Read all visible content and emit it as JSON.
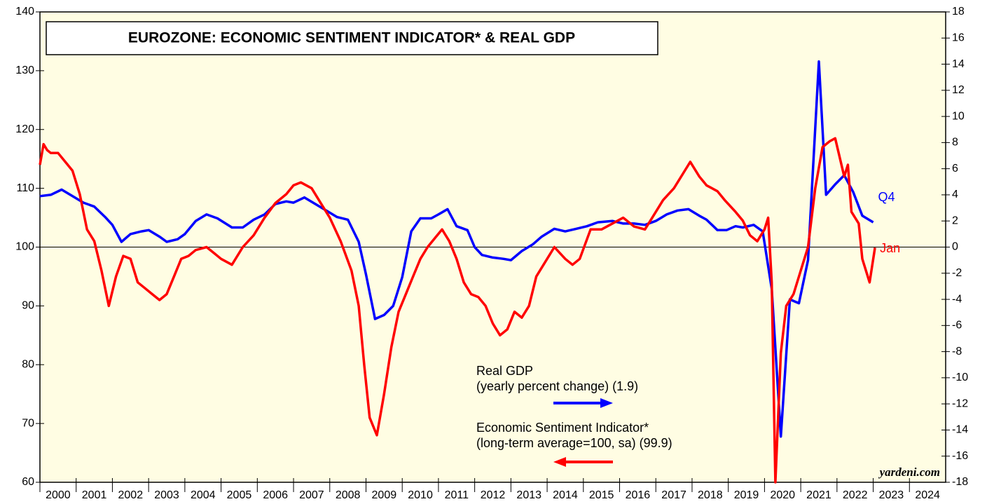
{
  "chart_data": {
    "type": "line",
    "title": "EUROZONE: ECONOMIC SENTIMENT INDICATOR* & REAL GDP",
    "source": "yardeni.com",
    "xlim": [
      2000,
      2025
    ],
    "xticks": [
      2000,
      2001,
      2002,
      2003,
      2004,
      2005,
      2006,
      2007,
      2008,
      2009,
      2010,
      2011,
      2012,
      2013,
      2014,
      2015,
      2016,
      2017,
      2018,
      2019,
      2020,
      2021,
      2022,
      2023,
      2024
    ],
    "ylim": [
      60,
      140
    ],
    "yticks": [
      60,
      70,
      80,
      90,
      100,
      110,
      120,
      130,
      140
    ],
    "y2lim": [
      -18,
      18
    ],
    "y2ticks": [
      -18,
      -16,
      -14,
      -12,
      -10,
      -8,
      -6,
      -4,
      -2,
      0,
      2,
      4,
      6,
      8,
      10,
      12,
      14,
      16,
      18
    ],
    "hline": 100,
    "background": "#fffde3",
    "series": [
      {
        "name": "Real GDP",
        "label": "(yearly percent change) (1.9)",
        "end_label": "Q4",
        "color": "#0000ff",
        "axis": "y2",
        "x": [
          2000.0,
          2000.3,
          2000.6,
          2000.9,
          2001.2,
          2001.5,
          2001.8,
          2002.0,
          2002.25,
          2002.5,
          2002.8,
          2003.0,
          2003.3,
          2003.5,
          2003.8,
          2004.0,
          2004.3,
          2004.6,
          2004.9,
          2005.3,
          2005.6,
          2005.9,
          2006.2,
          2006.5,
          2006.8,
          2007.0,
          2007.3,
          2007.6,
          2007.9,
          2008.2,
          2008.5,
          2008.8,
          2009.0,
          2009.25,
          2009.5,
          2009.75,
          2010.0,
          2010.25,
          2010.5,
          2010.8,
          2011.0,
          2011.25,
          2011.5,
          2011.8,
          2012.0,
          2012.2,
          2012.5,
          2012.8,
          2013.0,
          2013.3,
          2013.6,
          2013.85,
          2014.2,
          2014.5,
          2014.8,
          2015.1,
          2015.4,
          2015.8,
          2016.1,
          2016.4,
          2016.7,
          2017.0,
          2017.3,
          2017.6,
          2017.9,
          2018.2,
          2018.4,
          2018.7,
          2018.95,
          2019.2,
          2019.4,
          2019.7,
          2019.95,
          2020.2,
          2020.45,
          2020.7,
          2020.95,
          2021.2,
          2021.5,
          2021.7,
          2021.95,
          2022.2,
          2022.45,
          2022.7,
          2023.0
        ],
        "values": [
          3.9,
          4.0,
          4.4,
          3.9,
          3.4,
          3.1,
          2.3,
          1.7,
          0.4,
          1.0,
          1.2,
          1.3,
          0.8,
          0.4,
          0.6,
          1.0,
          2.0,
          2.5,
          2.2,
          1.5,
          1.5,
          2.1,
          2.5,
          3.3,
          3.5,
          3.4,
          3.8,
          3.3,
          2.8,
          2.3,
          2.1,
          0.4,
          -2.1,
          -5.5,
          -5.2,
          -4.5,
          -2.3,
          1.2,
          2.2,
          2.2,
          2.5,
          2.9,
          1.6,
          1.3,
          0.0,
          -0.6,
          -0.8,
          -0.9,
          -1.0,
          -0.3,
          0.2,
          0.8,
          1.4,
          1.2,
          1.4,
          1.6,
          1.9,
          2.0,
          1.8,
          1.8,
          1.7,
          2.0,
          2.5,
          2.8,
          2.9,
          2.4,
          2.1,
          1.3,
          1.3,
          1.6,
          1.5,
          1.7,
          1.2,
          -3.2,
          -14.5,
          -4.0,
          -4.3,
          -1.0,
          14.2,
          4.0,
          4.8,
          5.5,
          4.2,
          2.4,
          1.9
        ]
      },
      {
        "name": "Economic Sentiment Indicator*",
        "label": "(long-term average=100, sa) (99.9)",
        "end_label": "Jan",
        "color": "#ff0000",
        "x": [
          2000.0,
          2000.1,
          2000.2,
          2000.3,
          2000.5,
          2000.7,
          2000.9,
          2001.1,
          2001.3,
          2001.5,
          2001.7,
          2001.9,
          2002.1,
          2002.3,
          2002.5,
          2002.7,
          2002.9,
          2003.1,
          2003.3,
          2003.5,
          2003.7,
          2003.9,
          2004.1,
          2004.3,
          2004.6,
          2004.8,
          2005.0,
          2005.3,
          2005.6,
          2005.9,
          2006.2,
          2006.5,
          2006.8,
          2007.0,
          2007.2,
          2007.5,
          2007.8,
          2008.0,
          2008.3,
          2008.6,
          2008.8,
          2008.95,
          2009.1,
          2009.3,
          2009.5,
          2009.7,
          2009.9,
          2010.1,
          2010.3,
          2010.5,
          2010.7,
          2010.9,
          2011.1,
          2011.3,
          2011.5,
          2011.7,
          2011.9,
          2012.1,
          2012.3,
          2012.5,
          2012.7,
          2012.9,
          2013.1,
          2013.3,
          2013.5,
          2013.7,
          2013.9,
          2014.2,
          2014.5,
          2014.7,
          2014.9,
          2015.2,
          2015.5,
          2015.8,
          2016.1,
          2016.4,
          2016.7,
          2016.9,
          2017.2,
          2017.5,
          2017.8,
          2017.95,
          2018.2,
          2018.4,
          2018.7,
          2018.9,
          2019.2,
          2019.4,
          2019.6,
          2019.8,
          2020.0,
          2020.1,
          2020.2,
          2020.3,
          2020.45,
          2020.6,
          2020.8,
          2021.0,
          2021.2,
          2021.4,
          2021.6,
          2021.8,
          2021.95,
          2022.2,
          2022.3,
          2022.4,
          2022.6,
          2022.7,
          2022.9,
          2023.05
        ],
        "values": [
          114,
          117.5,
          116.5,
          116,
          116,
          114.5,
          113,
          109,
          103,
          101,
          96,
          90,
          95,
          98.5,
          98,
          94,
          93,
          92,
          91,
          92,
          95,
          98,
          98.5,
          99.5,
          100,
          99,
          98,
          97,
          100,
          102,
          105,
          107.5,
          109,
          110.5,
          111,
          110,
          107,
          105,
          101,
          96,
          90,
          80,
          71,
          68,
          75,
          83,
          89,
          92,
          95,
          98,
          100,
          101.5,
          103,
          101,
          98,
          94,
          92,
          91.5,
          90,
          87,
          85,
          86,
          89,
          88,
          90,
          95,
          97,
          100,
          98,
          97,
          98,
          103,
          103,
          104,
          105,
          103.5,
          103,
          105,
          108,
          110,
          113,
          114.5,
          112,
          110.5,
          109.5,
          108,
          106,
          104.5,
          102,
          101,
          103,
          105,
          94,
          60,
          82,
          90,
          92,
          96,
          100,
          110,
          117,
          118,
          118.5,
          112,
          114,
          106,
          104,
          98,
          94,
          99.9
        ]
      }
    ]
  }
}
